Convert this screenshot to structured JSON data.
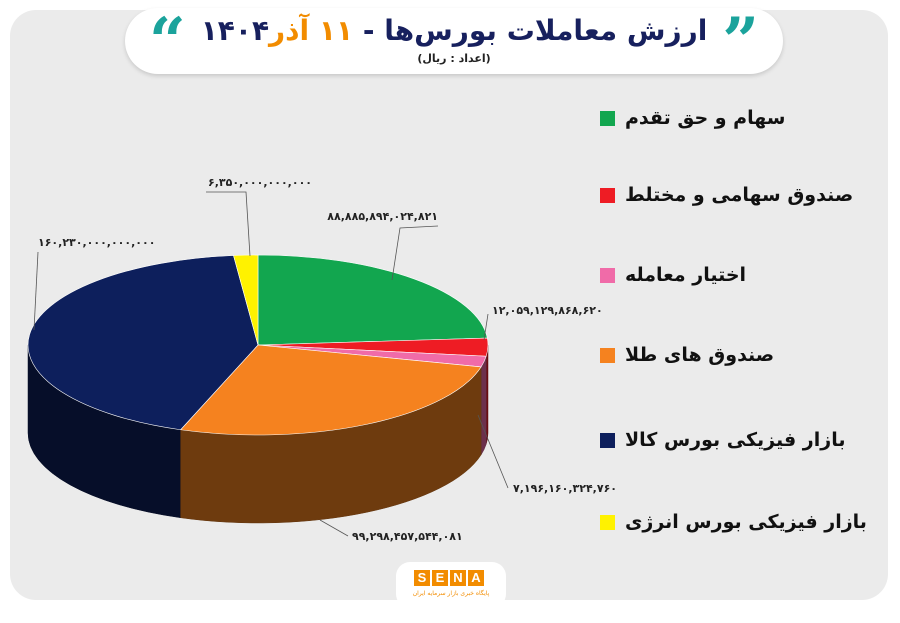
{
  "header": {
    "title_main": "ارزش معاملات بورس‌ها -",
    "title_date": "۱۱ آذر",
    "title_year": "۱۴۰۴",
    "subtitle": "(اعداد : ریال)"
  },
  "chart_data": {
    "type": "pie",
    "title": "ارزش معاملات بورس‌ها - ۱۱ آذر ۱۴۰۴",
    "subtitle": "(اعداد : ریال)",
    "legend_position": "right",
    "slices": [
      {
        "name": "سهام و حق تقدم",
        "value": 88885894024821,
        "label": "۸۸,۸۸۵,۸۹۴,۰۲۴,۸۲۱",
        "color": "#12a64f"
      },
      {
        "name": "صندوق سهامی و مختلط",
        "value": 12059129868620,
        "label": "۱۲,۰۵۹,۱۲۹,۸۶۸,۶۲۰",
        "color": "#ee1c24"
      },
      {
        "name": "اختیار معامله",
        "value": 7196160324760,
        "label": "۷,۱۹۶,۱۶۰,۳۲۴,۷۶۰",
        "color": "#f06ba8"
      },
      {
        "name": "صندوق های طلا",
        "value": 99298457544081,
        "label": "۹۹,۲۹۸,۴۵۷,۵۴۴,۰۸۱",
        "color": "#f5821f"
      },
      {
        "name": "بازار فیزیکی بورس کالا",
        "value": 160230000000000,
        "label": "۱۶۰,۲۳۰,۰۰۰,۰۰۰,۰۰۰",
        "color": "#0d1f5c"
      },
      {
        "name": "بازار فیزیکی بورس انرژی",
        "value": 6350000000000,
        "label": "۶,۳۵۰,۰۰۰,۰۰۰,۰۰۰",
        "color": "#fff200"
      }
    ]
  },
  "brand": {
    "letters": [
      "S",
      "E",
      "N",
      "A"
    ],
    "tagline": "پایگاه خبری بازار سرمایه ایران"
  },
  "icons": {
    "quote_left": "left-quote-icon",
    "quote_right": "right-quote-icon"
  }
}
